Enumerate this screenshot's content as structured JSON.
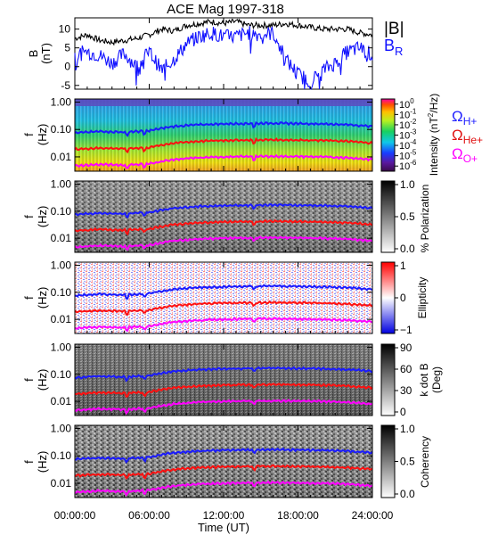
{
  "chart_data": {
    "type": "multi-panel spectrogram",
    "title": "ACE Mag 1997-318",
    "xlabel": "Time (UT)",
    "x_ticks": [
      "00:00:00",
      "06:00:00",
      "12:00:00",
      "18:00:00",
      "24:00:00"
    ],
    "xlim_hours": [
      0,
      24
    ],
    "panels": [
      {
        "kind": "line",
        "ylabel": "B",
        "yunit": "(nT)",
        "ylim": [
          -6,
          13
        ],
        "y_ticks": [
          10,
          5,
          0,
          -5
        ],
        "legend_placement": "right",
        "series": [
          {
            "name": "|B|",
            "color": "#000000",
            "x": [
              0,
              1,
              2,
              3,
              4,
              5,
              6,
              7,
              8,
              9,
              10,
              11,
              12,
              13,
              14,
              15,
              16,
              17,
              18,
              19,
              20,
              21,
              22,
              23,
              24
            ],
            "values": [
              7.5,
              8.5,
              7.0,
              6.5,
              7.0,
              7.5,
              8.5,
              10.0,
              9.5,
              11.0,
              11.5,
              12.0,
              11.5,
              12.0,
              11.0,
              11.0,
              11.0,
              11.5,
              11.0,
              10.5,
              10.0,
              10.0,
              10.0,
              9.0,
              8.5
            ]
          },
          {
            "name": "B",
            "subscript": "R",
            "color": "#1010ff",
            "x": [
              0,
              1,
              2,
              3,
              4,
              5,
              6,
              7,
              8,
              9,
              10,
              11,
              12,
              13,
              14,
              15,
              16,
              17,
              18,
              19,
              20,
              21,
              22,
              23,
              24
            ],
            "values": [
              3.0,
              4.0,
              3.0,
              1.0,
              3.5,
              0.0,
              4.0,
              -1.0,
              2.0,
              6.0,
              8.0,
              9.0,
              8.0,
              8.0,
              9.0,
              8.5,
              9.0,
              2.0,
              -2.0,
              -4.0,
              -1.0,
              1.0,
              4.0,
              5.0,
              3.0
            ]
          }
        ]
      },
      {
        "kind": "spectrogram",
        "colormap": "rainbow",
        "ylabel": "f",
        "yunit": "(Hz)",
        "y_ticks": [
          "1.00",
          "0.10",
          "0.01"
        ],
        "colorbar_label": "Intensity",
        "colorbar_unit": "(nT",
        "colorbar_unit_sup": "2",
        "colorbar_unit_tail": "/Hz)",
        "colorbar_ticks": [
          {
            "base": "10",
            "exp": "0"
          },
          {
            "base": "10",
            "exp": "-1"
          },
          {
            "base": "10",
            "exp": "-2"
          },
          {
            "base": "10",
            "exp": "-3"
          },
          {
            "base": "10",
            "exp": "-4"
          },
          {
            "base": "10",
            "exp": "-5"
          },
          {
            "base": "10",
            "exp": "-6"
          }
        ],
        "legend": [
          {
            "symbol": "Ω",
            "sub": "H+",
            "color": "#2020ff"
          },
          {
            "symbol": "Ω",
            "sub": "He+",
            "color": "#e01010"
          },
          {
            "symbol": "Ω",
            "sub": "O+",
            "color": "#ff00ff"
          }
        ]
      },
      {
        "kind": "spectrogram",
        "colormap": "gray",
        "ylabel": "f",
        "yunit": "(Hz)",
        "y_ticks": [
          "1.00",
          "0.10",
          "0.01"
        ],
        "colorbar_label": "% Polarization",
        "colorbar_ticks": [
          "1.0",
          "0.5",
          "0.0"
        ]
      },
      {
        "kind": "spectrogram",
        "colormap": "blue-white-red",
        "ylabel": "f",
        "yunit": "(Hz)",
        "y_ticks": [
          "1.00",
          "0.10",
          "0.01"
        ],
        "colorbar_label": "Ellipticity",
        "colorbar_ticks": [
          "1",
          "0",
          "−1"
        ]
      },
      {
        "kind": "spectrogram",
        "colormap": "gray",
        "ylabel": "f",
        "yunit": "(Hz)",
        "y_ticks": [
          "1.00",
          "0.10",
          "0.01"
        ],
        "colorbar_label": "k dot B",
        "colorbar_unit": "(Deg)",
        "colorbar_ticks": [
          "90",
          "60",
          "30",
          "0"
        ]
      },
      {
        "kind": "spectrogram",
        "colormap": "gray",
        "ylabel": "f",
        "yunit": "(Hz)",
        "y_ticks": [
          "1.00",
          "0.10",
          "0.01"
        ],
        "colorbar_label": "Coherency",
        "colorbar_ticks": [
          "1.0",
          "0.5",
          "0.0"
        ]
      }
    ],
    "gyrofrequency_lines": [
      {
        "name": "H+",
        "color": "#1a1aff",
        "x": [
          0,
          2,
          4,
          6,
          8,
          10,
          12,
          14,
          16,
          18,
          20,
          22,
          24
        ],
        "values": [
          0.075,
          0.085,
          0.08,
          0.09,
          0.13,
          0.15,
          0.16,
          0.165,
          0.17,
          0.165,
          0.16,
          0.15,
          0.13
        ]
      },
      {
        "name": "He+",
        "color": "#ff1010",
        "x": [
          0,
          2,
          4,
          6,
          8,
          10,
          12,
          14,
          16,
          18,
          20,
          22,
          24
        ],
        "values": [
          0.019,
          0.021,
          0.02,
          0.022,
          0.032,
          0.037,
          0.04,
          0.041,
          0.042,
          0.041,
          0.04,
          0.037,
          0.032
        ]
      },
      {
        "name": "O+",
        "color": "#ff00ff",
        "x": [
          0,
          2,
          4,
          6,
          8,
          10,
          12,
          14,
          16,
          18,
          20,
          22,
          24
        ],
        "values": [
          0.0047,
          0.0053,
          0.005,
          0.0056,
          0.008,
          0.0093,
          0.01,
          0.0103,
          0.0105,
          0.0103,
          0.01,
          0.0093,
          0.008
        ]
      }
    ]
  }
}
